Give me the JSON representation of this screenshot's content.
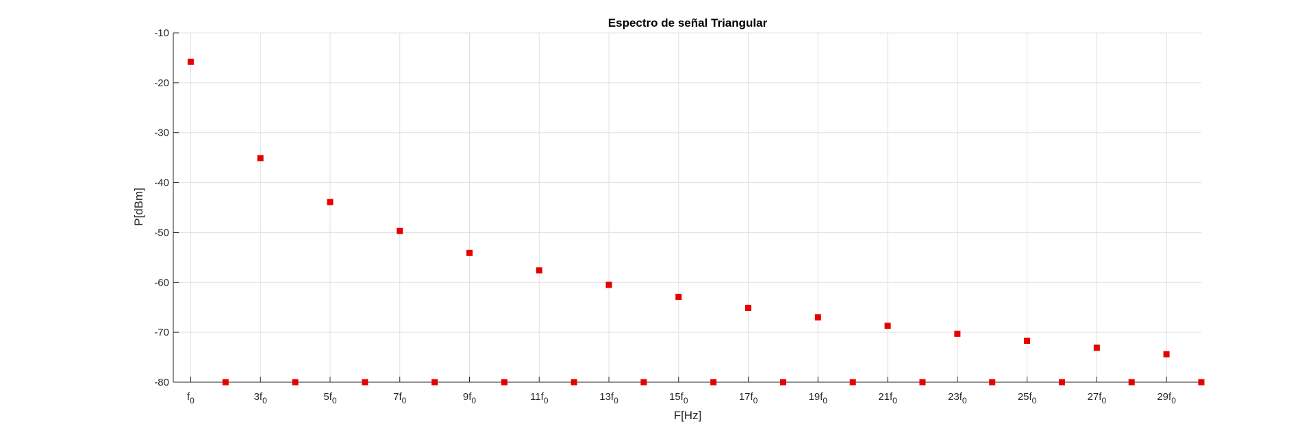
{
  "chart_data": {
    "type": "scatter",
    "title": "Espectro de señal Triangular",
    "xlabel": "F[Hz]",
    "ylabel": "P[dBm]",
    "xlim": [
      0.5,
      30
    ],
    "ylim": [
      -80,
      -10
    ],
    "grid": true,
    "legend": "none",
    "yticks": [
      -10,
      -20,
      -30,
      -40,
      -50,
      -60,
      -70,
      -80
    ],
    "xticks": [
      {
        "x": 1,
        "base": "f",
        "sub": "0"
      },
      {
        "x": 3,
        "base": "3f",
        "sub": "0"
      },
      {
        "x": 5,
        "base": "5f",
        "sub": "0"
      },
      {
        "x": 7,
        "base": "7f",
        "sub": "0"
      },
      {
        "x": 9,
        "base": "9f",
        "sub": "0"
      },
      {
        "x": 11,
        "base": "11f",
        "sub": "0"
      },
      {
        "x": 13,
        "base": "13f",
        "sub": "0"
      },
      {
        "x": 15,
        "base": "15f",
        "sub": "0"
      },
      {
        "x": 17,
        "base": "17f",
        "sub": "0"
      },
      {
        "x": 19,
        "base": "19f",
        "sub": "0"
      },
      {
        "x": 21,
        "base": "21f",
        "sub": "0"
      },
      {
        "x": 23,
        "base": "23f",
        "sub": "0"
      },
      {
        "x": 25,
        "base": "25f",
        "sub": "0"
      },
      {
        "x": 27,
        "base": "27f",
        "sub": "0"
      },
      {
        "x": 29,
        "base": "29f",
        "sub": "0"
      }
    ],
    "marker_color": "#e60000",
    "grid_color": "#e0e0e0",
    "axis_color": "#262626",
    "series": [
      {
        "x": [
          1,
          2,
          3,
          4,
          5,
          6,
          7,
          8,
          9,
          10,
          11,
          12,
          13,
          14,
          15,
          16,
          17,
          18,
          19,
          20,
          21,
          22,
          23,
          24,
          25,
          26,
          27,
          28,
          29,
          30
        ],
        "y": [
          -15.8,
          -80,
          -35.1,
          -80,
          -43.9,
          -80,
          -49.7,
          -80,
          -54.1,
          -80,
          -57.6,
          -80,
          -60.5,
          -80,
          -62.9,
          -80,
          -65.1,
          -80,
          -67.0,
          -80,
          -68.7,
          -80,
          -70.3,
          -80,
          -71.7,
          -80,
          -73.1,
          -80,
          -74.4,
          -80
        ]
      }
    ]
  }
}
